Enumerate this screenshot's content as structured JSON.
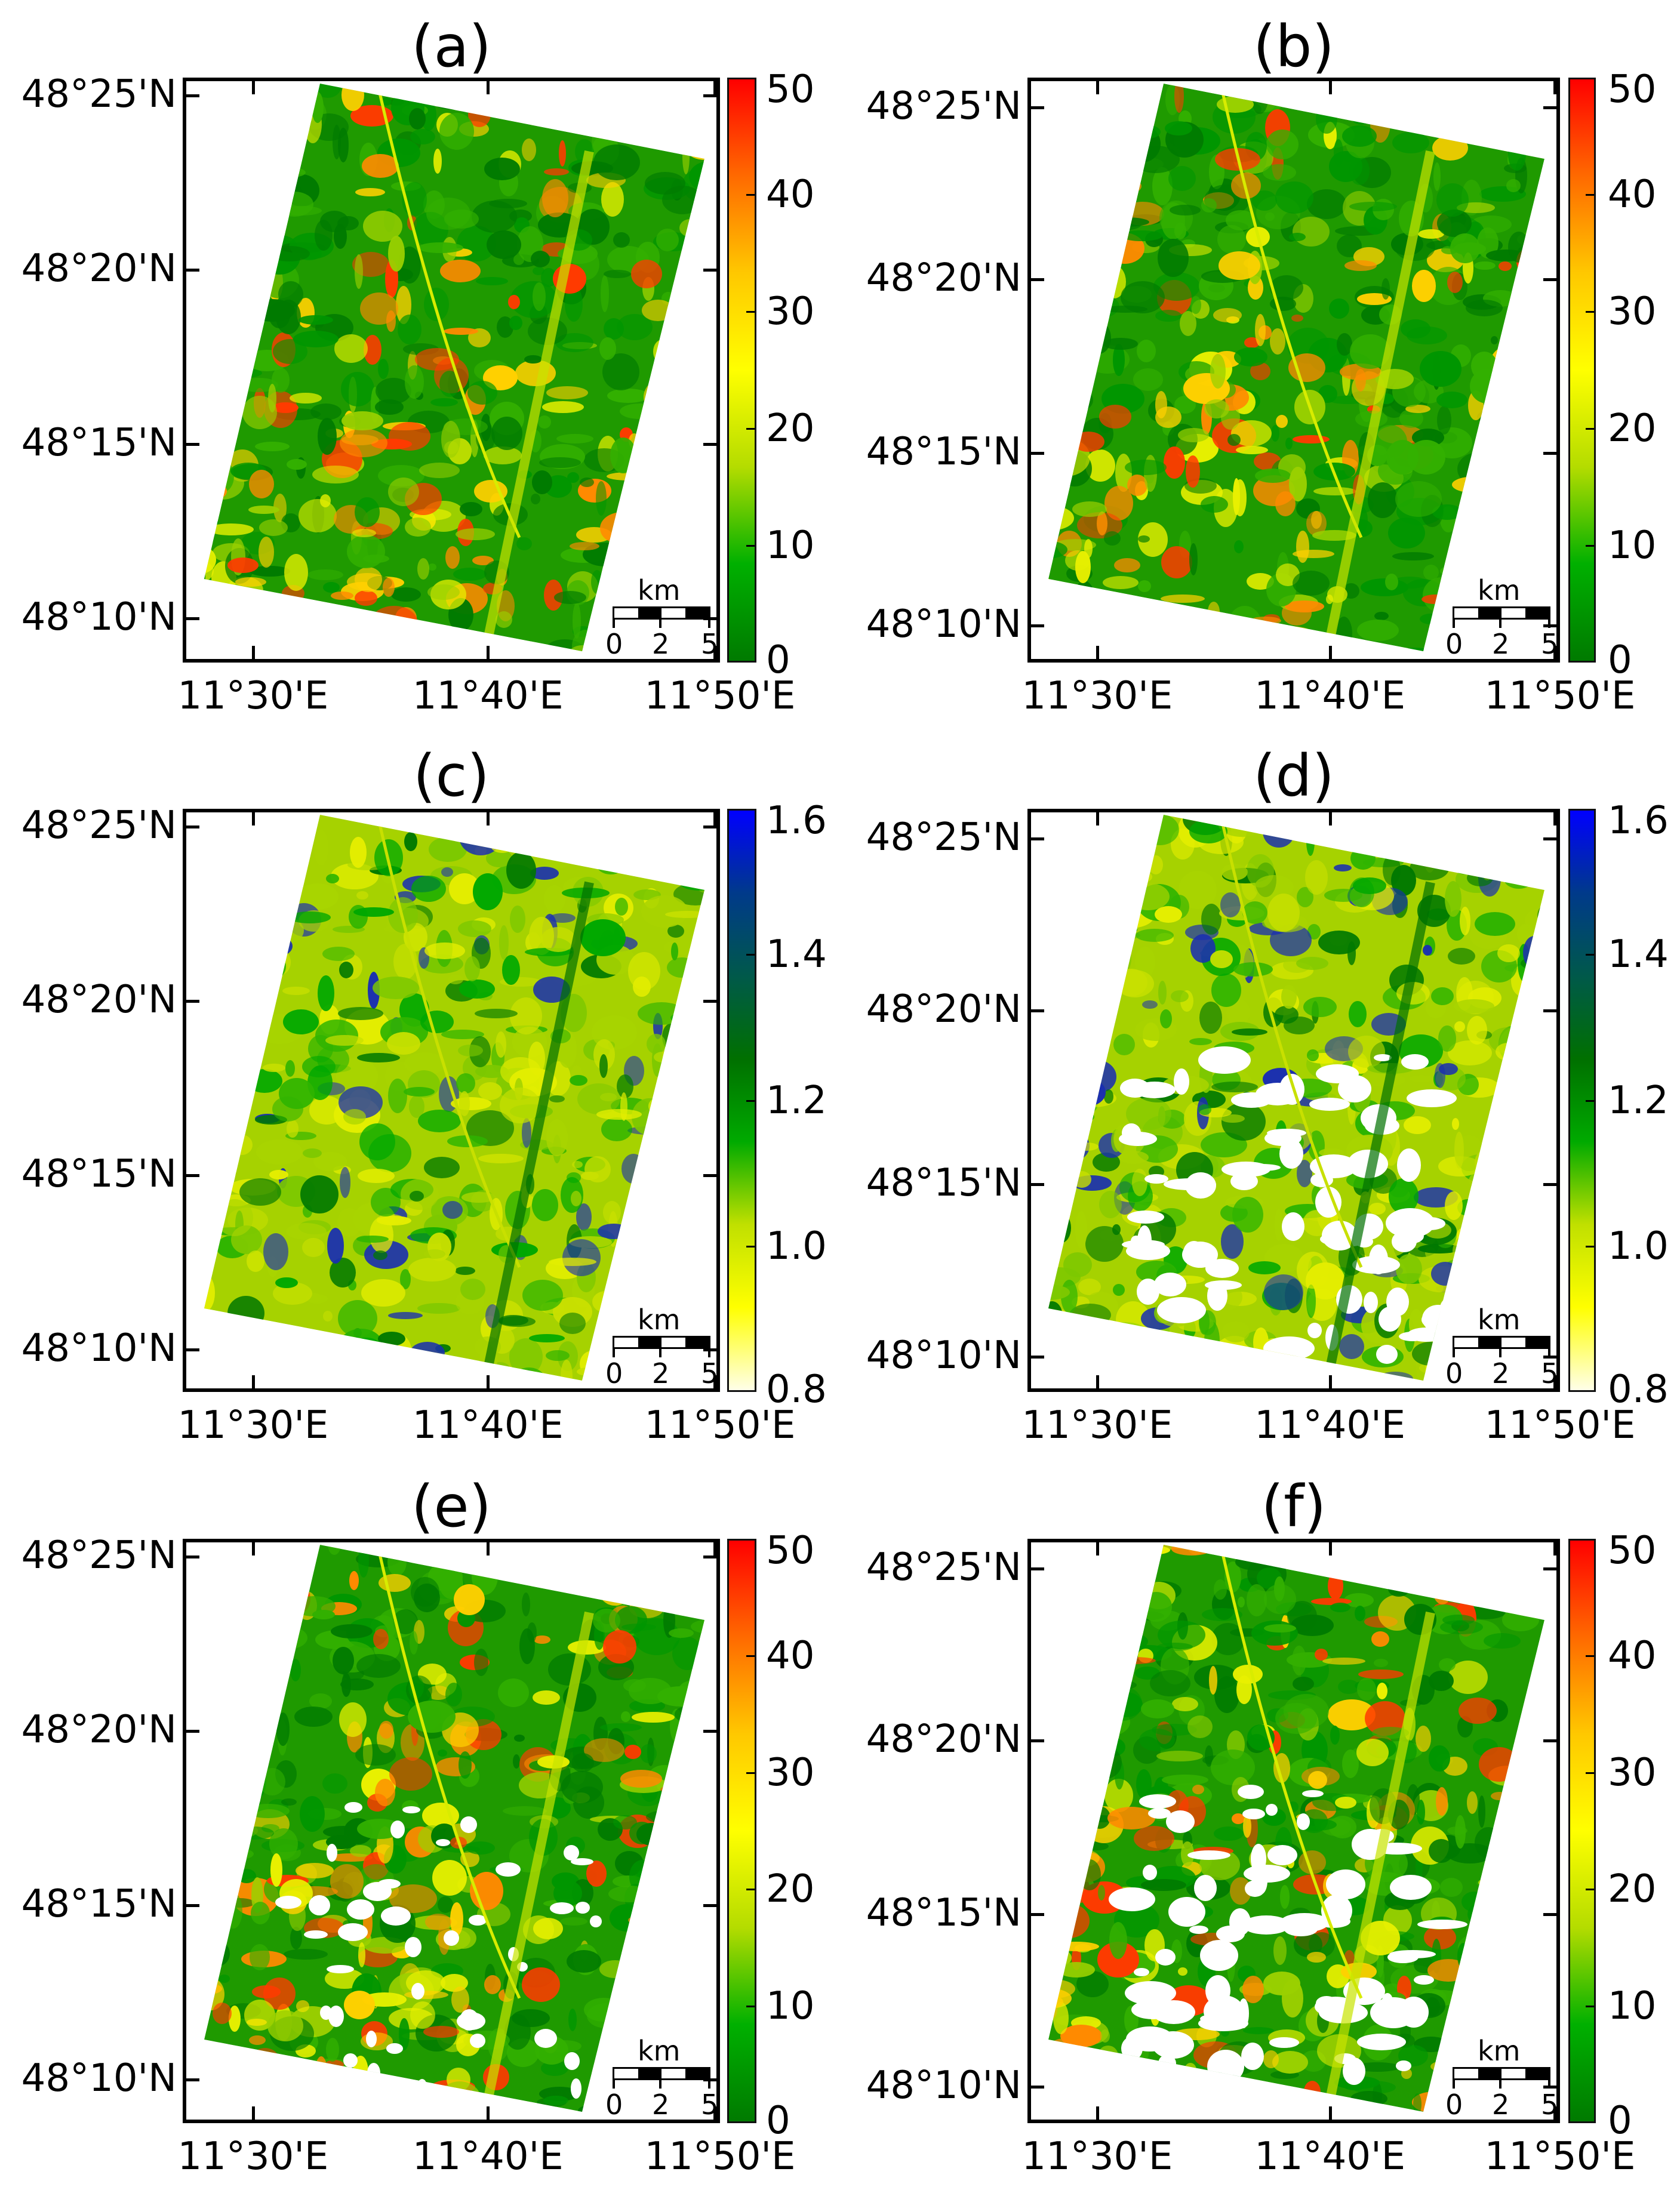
{
  "figure": {
    "panels": [
      {
        "id": "a",
        "title": "(a)",
        "colorbar": "sigma"
      },
      {
        "id": "b",
        "title": "(b)",
        "colorbar": "sigma"
      },
      {
        "id": "c",
        "title": "(c)",
        "colorbar": "ratio"
      },
      {
        "id": "d",
        "title": "(d)",
        "colorbar": "ratio"
      },
      {
        "id": "e",
        "title": "(e)",
        "colorbar": "sigma"
      },
      {
        "id": "f",
        "title": "(f)",
        "colorbar": "sigma"
      }
    ],
    "yticks": [
      "48°25'N",
      "48°20'N",
      "48°15'N",
      "48°10'N"
    ],
    "xticks": [
      "11°30'E",
      "11°40'E",
      "11°50'E"
    ],
    "colorbars": {
      "sigma": {
        "ticks": [
          "50",
          "40",
          "30",
          "20",
          "10",
          "0"
        ],
        "colors": [
          "#ff0000",
          "#ff6a00",
          "#ffc800",
          "#ffff00",
          "#b4dc00",
          "#00b000",
          "#007a00"
        ]
      },
      "ratio": {
        "ticks": [
          "1.6",
          "1.4",
          "1.2",
          "1.0",
          "0.8"
        ],
        "colors": [
          "#0000ff",
          "#003a8a",
          "#00594a",
          "#007000",
          "#00aa00",
          "#c0e000",
          "#ffff00",
          "#ffffe8"
        ]
      }
    },
    "scalebar": {
      "unit": "km",
      "labels": [
        "0",
        "2",
        "5"
      ]
    }
  },
  "chart_data": [
    {
      "type": "heatmap",
      "title": "(a)",
      "xlabel": "",
      "ylabel": "",
      "x_ticks": [
        "11°30'E",
        "11°40'E",
        "11°50'E"
      ],
      "y_ticks": [
        "48°10'N",
        "48°15'N",
        "48°20'N",
        "48°25'N"
      ],
      "colorbar": {
        "min": 0,
        "max": 50,
        "ticks": [
          0,
          10,
          20,
          30,
          40,
          50
        ],
        "colormap": "green-yellow-red"
      },
      "scalebar_km": [
        0,
        2,
        5
      ],
      "grid": false
    },
    {
      "type": "heatmap",
      "title": "(b)",
      "xlabel": "",
      "ylabel": "",
      "x_ticks": [
        "11°30'E",
        "11°40'E",
        "11°50'E"
      ],
      "y_ticks": [
        "48°10'N",
        "48°15'N",
        "48°20'N",
        "48°25'N"
      ],
      "colorbar": {
        "min": 0,
        "max": 50,
        "ticks": [
          0,
          10,
          20,
          30,
          40,
          50
        ],
        "colormap": "green-yellow-red"
      },
      "scalebar_km": [
        0,
        2,
        5
      ],
      "grid": false
    },
    {
      "type": "heatmap",
      "title": "(c)",
      "xlabel": "",
      "ylabel": "",
      "x_ticks": [
        "11°30'E",
        "11°40'E",
        "11°50'E"
      ],
      "y_ticks": [
        "48°10'N",
        "48°15'N",
        "48°20'N",
        "48°25'N"
      ],
      "colorbar": {
        "min": 0.8,
        "max": 1.6,
        "ticks": [
          0.8,
          1.0,
          1.2,
          1.4,
          1.6
        ],
        "colormap": "white-yellow-green-blue"
      },
      "scalebar_km": [
        0,
        2,
        5
      ],
      "grid": false
    },
    {
      "type": "heatmap",
      "title": "(d)",
      "xlabel": "",
      "ylabel": "",
      "x_ticks": [
        "11°30'E",
        "11°40'E",
        "11°50'E"
      ],
      "y_ticks": [
        "48°10'N",
        "48°15'N",
        "48°20'N",
        "48°25'N"
      ],
      "colorbar": {
        "min": 0.8,
        "max": 1.6,
        "ticks": [
          0.8,
          1.0,
          1.2,
          1.4,
          1.6
        ],
        "colormap": "white-yellow-green-blue"
      },
      "scalebar_km": [
        0,
        2,
        5
      ],
      "grid": false
    },
    {
      "type": "heatmap",
      "title": "(e)",
      "xlabel": "",
      "ylabel": "",
      "x_ticks": [
        "11°30'E",
        "11°40'E",
        "11°50'E"
      ],
      "y_ticks": [
        "48°10'N",
        "48°15'N",
        "48°20'N",
        "48°25'N"
      ],
      "colorbar": {
        "min": 0,
        "max": 50,
        "ticks": [
          0,
          10,
          20,
          30,
          40,
          50
        ],
        "colormap": "green-yellow-red"
      },
      "scalebar_km": [
        0,
        2,
        5
      ],
      "grid": false
    },
    {
      "type": "heatmap",
      "title": "(f)",
      "xlabel": "",
      "ylabel": "",
      "x_ticks": [
        "11°30'E",
        "11°40'E",
        "11°50'E"
      ],
      "y_ticks": [
        "48°10'N",
        "48°15'N",
        "48°20'N",
        "48°25'N"
      ],
      "colorbar": {
        "min": 0,
        "max": 50,
        "ticks": [
          0,
          10,
          20,
          30,
          40,
          50
        ],
        "colormap": "green-yellow-red"
      },
      "scalebar_km": [
        0,
        2,
        5
      ],
      "grid": false
    }
  ]
}
